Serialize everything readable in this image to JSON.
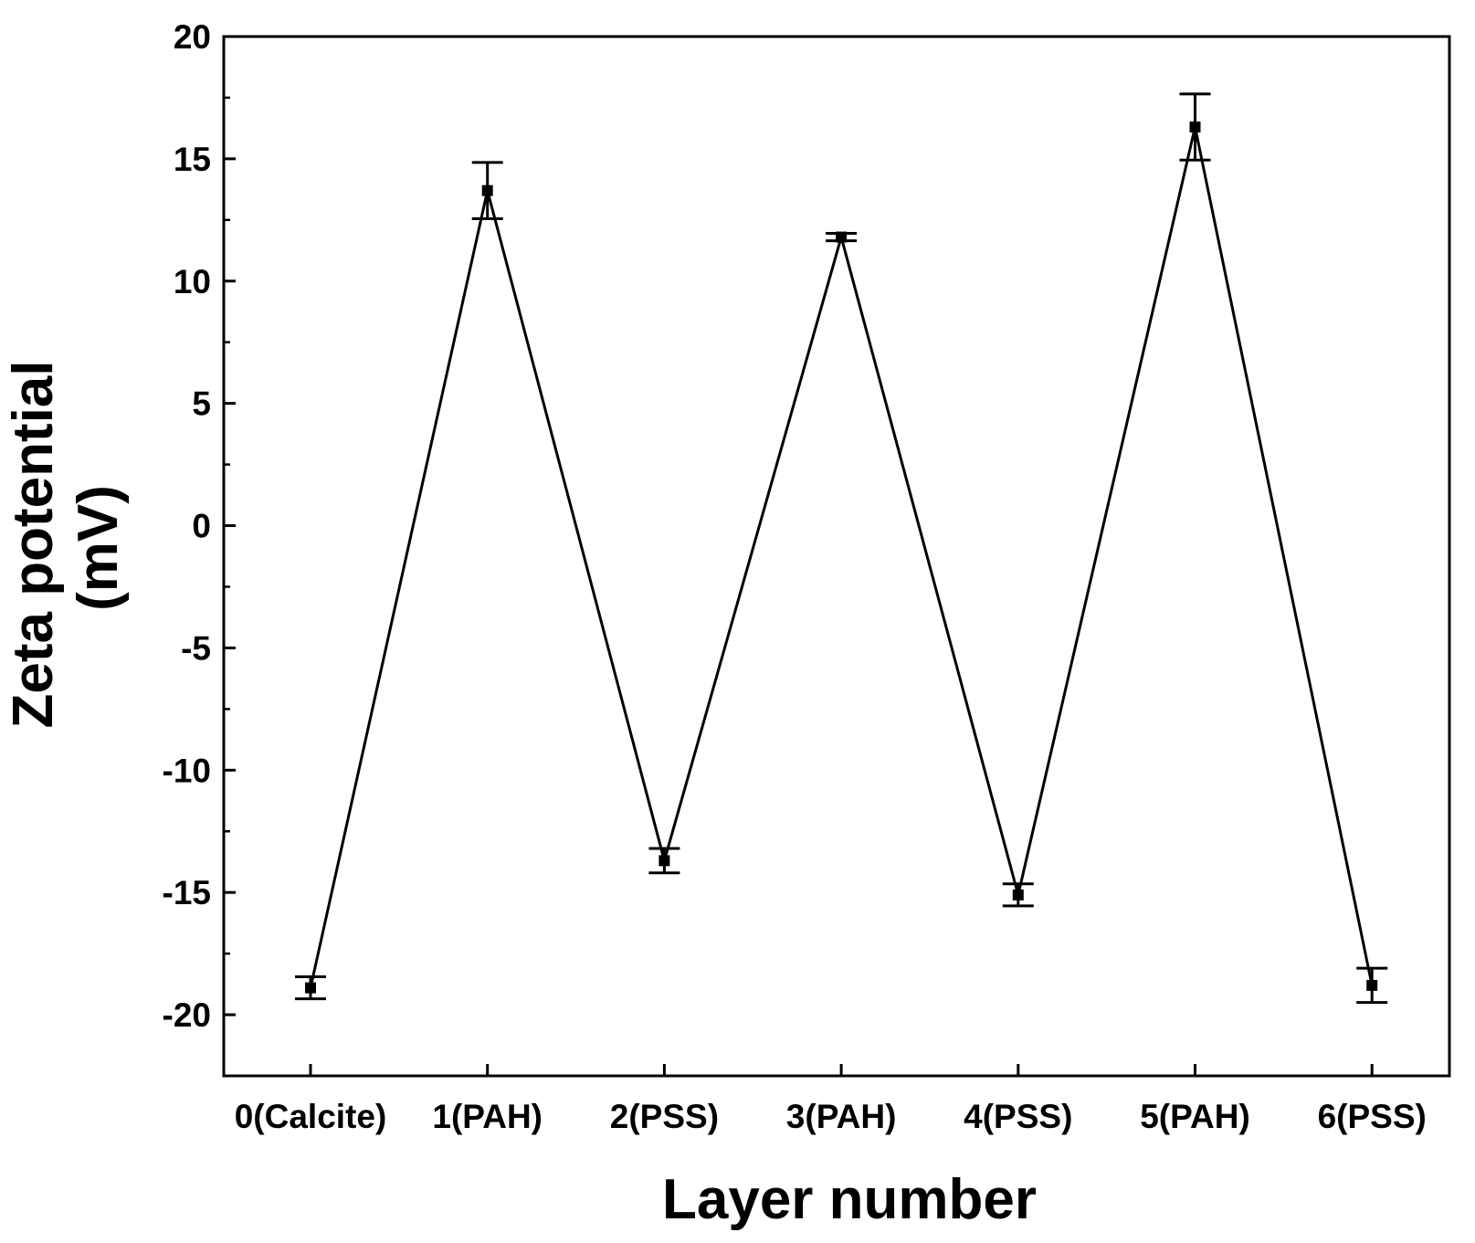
{
  "chart_data": {
    "type": "line",
    "title": "",
    "xlabel": "Layer number",
    "ylabel_lines": [
      "Zeta potential",
      "(mV)"
    ],
    "categories": [
      "0(Calcite)",
      "1(PAH)",
      "2(PSS)",
      "3(PAH)",
      "4(PSS)",
      "5(PAH)",
      "6(PSS)"
    ],
    "series": [
      {
        "values": [
          -18.9,
          13.7,
          -13.7,
          11.8,
          -15.1,
          16.3,
          -18.8
        ],
        "errors": [
          0.45,
          1.15,
          0.5,
          0.15,
          0.45,
          1.35,
          0.7
        ]
      }
    ],
    "ylim": [
      -22.5,
      20
    ],
    "yticks": [
      20,
      15,
      10,
      5,
      0,
      -5,
      -10,
      -15,
      -20
    ],
    "grid": false,
    "legend": "none",
    "colors": {
      "line": "#000000",
      "marker": "#000000"
    }
  }
}
